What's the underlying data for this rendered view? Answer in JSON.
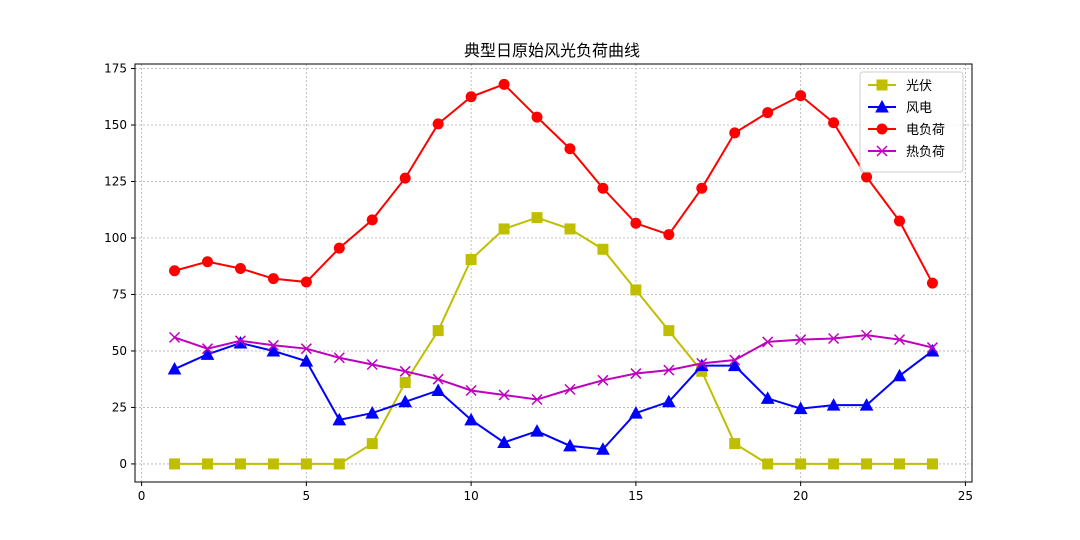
{
  "chart_data": {
    "type": "line",
    "title": "典型日原始风光负荷曲线",
    "xlabel": "",
    "ylabel": "",
    "xlim": [
      -0.2,
      25.2
    ],
    "ylim": [
      -8,
      177
    ],
    "x_ticks": [
      0,
      5,
      10,
      15,
      20,
      25
    ],
    "y_ticks": [
      0,
      25,
      50,
      75,
      100,
      125,
      150,
      175
    ],
    "grid": true,
    "legend_position": "top-right",
    "x": [
      1,
      2,
      3,
      4,
      5,
      6,
      7,
      8,
      9,
      10,
      11,
      12,
      13,
      14,
      15,
      16,
      17,
      18,
      19,
      20,
      21,
      22,
      23,
      24
    ],
    "series": [
      {
        "name": "光伏",
        "color": "#bfbf00",
        "marker": "square",
        "values": [
          0,
          0,
          0,
          0,
          0,
          0,
          9,
          36,
          59,
          90.5,
          104,
          109,
          104,
          95,
          77,
          59,
          41,
          9,
          0,
          0,
          0,
          0,
          0,
          0
        ]
      },
      {
        "name": "风电",
        "color": "#0000ff",
        "marker": "triangle",
        "values": [
          42,
          48.5,
          53.5,
          50,
          45.5,
          19.5,
          22.5,
          27.5,
          32.5,
          19.5,
          9.5,
          14.5,
          8,
          6.5,
          22.5,
          27.5,
          43.5,
          43.5,
          29,
          24.5,
          26,
          26,
          39,
          50
        ]
      },
      {
        "name": "电负荷",
        "color": "#ff0000",
        "marker": "circle",
        "values": [
          85.5,
          89.5,
          86.5,
          82,
          80.5,
          95.5,
          108,
          126.5,
          150.5,
          162.5,
          168,
          153.5,
          139.5,
          122,
          106.5,
          101.5,
          122,
          146.5,
          155.5,
          163,
          151,
          127,
          107.5,
          80
        ]
      },
      {
        "name": "热负荷",
        "color": "#bf00bf",
        "marker": "x",
        "values": [
          56,
          51,
          54.5,
          52.5,
          51,
          47,
          44,
          41,
          37.5,
          32.5,
          30.5,
          28.5,
          33,
          37,
          40,
          41.5,
          44.5,
          46,
          54,
          55,
          55.5,
          57,
          55,
          51.5
        ]
      }
    ]
  }
}
